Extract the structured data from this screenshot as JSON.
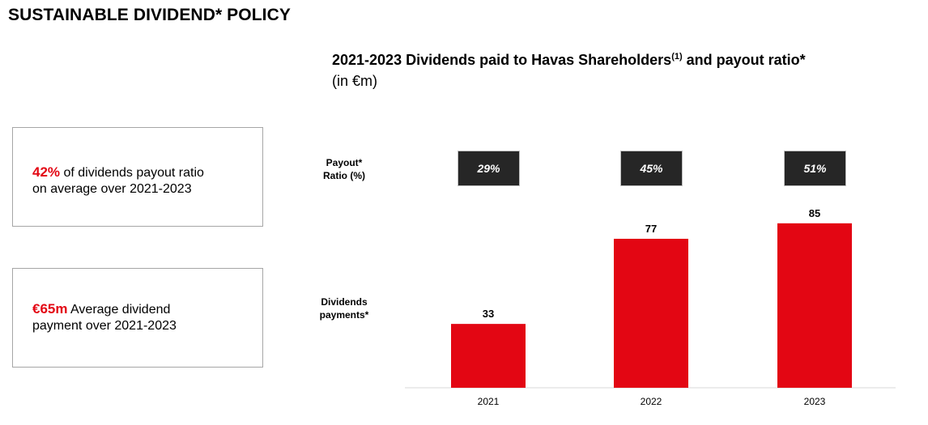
{
  "page": {
    "title": "SUSTAINABLE DIVIDEND* POLICY"
  },
  "kpis": [
    {
      "value": "42%",
      "text_line1": " of dividends payout ratio",
      "text_line2": "on average over 2021-2023"
    },
    {
      "value": "€65m",
      "text_line1": " Average dividend",
      "text_line2": "payment over 2021-2023"
    }
  ],
  "chart": {
    "title": "2021-2023 Dividends paid to Havas Shareholders",
    "title_sup": "(1)",
    "title_suffix": " and payout ratio*",
    "subtitle": "(in €m)",
    "payout_label_line1": "Payout*",
    "payout_label_line2": "Ratio (%)",
    "dividends_label_line1": "Dividends",
    "dividends_label_line2": "payments*"
  },
  "colors": {
    "accent": "#e30613",
    "ratio_box": "#262626"
  },
  "chart_data": {
    "type": "bar",
    "categories": [
      "2021",
      "2022",
      "2023"
    ],
    "values": [
      33,
      77,
      85
    ],
    "payout_ratios": [
      "29%",
      "45%",
      "51%"
    ],
    "ylim": [
      0,
      100
    ],
    "grid": false,
    "legend": "none"
  }
}
